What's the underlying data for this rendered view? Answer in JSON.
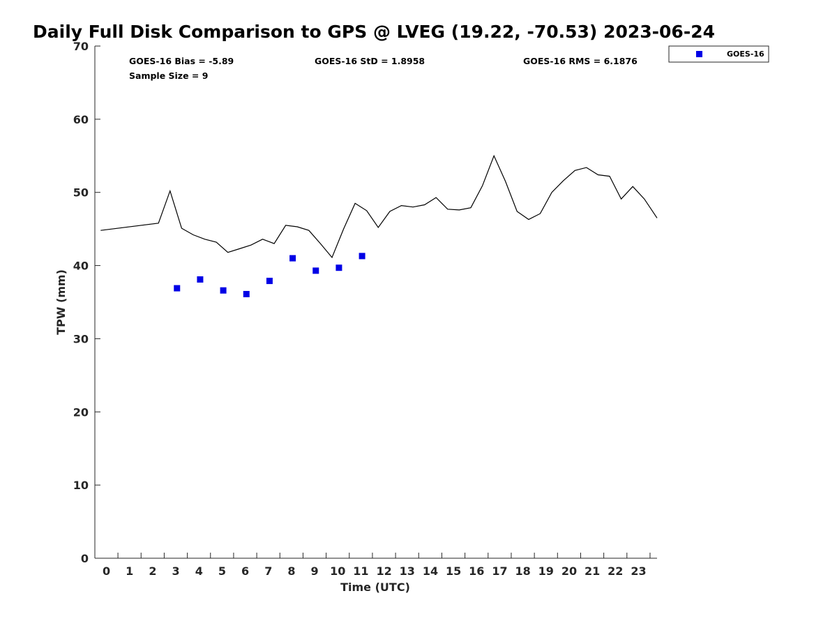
{
  "colors": {
    "marker": "#0000e6",
    "line": "#000000",
    "axis": "#262626"
  },
  "chart_data": {
    "type": "scatter",
    "title": "Daily Full Disk Comparison to GPS @ LVEG (19.22, -70.53) 2023-06-24",
    "xlabel": "Time (UTC)",
    "ylabel": "TPW (mm)",
    "xlim": [
      -0.5,
      23.8
    ],
    "ylim": [
      0,
      70
    ],
    "x_ticks": [
      0,
      1,
      2,
      3,
      4,
      5,
      6,
      7,
      8,
      9,
      10,
      11,
      12,
      13,
      14,
      15,
      16,
      17,
      18,
      19,
      20,
      21,
      22,
      23
    ],
    "y_ticks": [
      0,
      10,
      20,
      30,
      40,
      50,
      60,
      70
    ],
    "stats": {
      "bias": "GOES-16 Bias = -5.89",
      "std": "GOES-16 StD = 1.8958",
      "rms": "GOES-16 RMS = 6.1876",
      "sample": "Sample Size = 9"
    },
    "legend": {
      "label": "GOES-16",
      "position": "top-right outside"
    },
    "series": [
      {
        "name": "GOES-16",
        "kind": "markers",
        "x": [
          3.05,
          4.05,
          5.05,
          6.05,
          7.05,
          8.05,
          9.05,
          10.05,
          11.05
        ],
        "y": [
          36.9,
          38.1,
          36.6,
          36.1,
          37.9,
          41.0,
          39.3,
          39.7,
          41.3
        ]
      },
      {
        "name": "GPS",
        "kind": "line",
        "x": [
          -0.25,
          2.25,
          2.75,
          3.25,
          3.75,
          4.25,
          4.75,
          5.25,
          5.75,
          6.25,
          6.75,
          7.25,
          7.75,
          8.25,
          8.75,
          9.25,
          9.75,
          10.25,
          10.75,
          11.25,
          11.75,
          12.25,
          12.75,
          13.25,
          13.75,
          14.25,
          14.75,
          15.25,
          15.75,
          16.25,
          16.75,
          17.25,
          17.75,
          18.25,
          18.75,
          19.25,
          19.75,
          20.25,
          20.75,
          21.25,
          21.75,
          22.25,
          22.75,
          23.25,
          23.8
        ],
        "y": [
          44.8,
          45.8,
          50.2,
          45.1,
          44.2,
          43.6,
          43.2,
          41.8,
          42.3,
          42.8,
          43.6,
          43.0,
          45.5,
          45.3,
          44.8,
          43.0,
          41.1,
          45.0,
          48.5,
          47.5,
          45.2,
          47.4,
          48.2,
          48.0,
          48.3,
          49.3,
          47.7,
          47.6,
          47.9,
          50.9,
          55.0,
          51.5,
          47.4,
          46.3,
          47.1,
          50.0,
          51.6,
          53.0,
          53.4,
          52.4,
          52.2,
          49.1,
          50.8,
          49.1,
          46.5
        ]
      }
    ]
  }
}
